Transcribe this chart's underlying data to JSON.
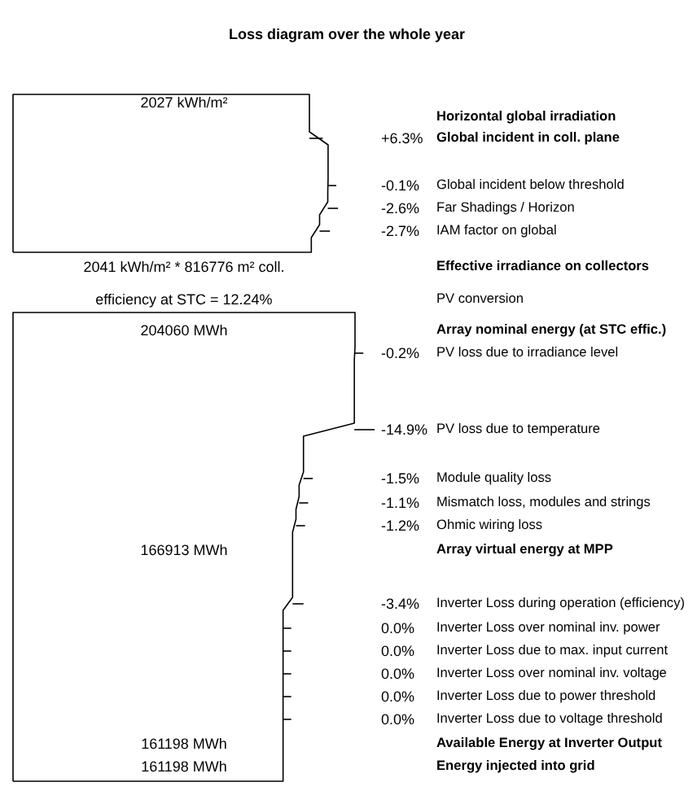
{
  "chart_data": {
    "type": "other",
    "title": "Loss diagram over the whole year",
    "categories": [
      "Horizontal global irradiation",
      "Global incident in coll. plane",
      "Global incident below threshold",
      "Far Shadings / Horizon",
      "IAM factor on global",
      "Effective irradiance on collectors",
      "PV conversion",
      "Array nominal energy (at STC effic.)",
      "PV loss due to irradiance level",
      "PV loss due to temperature",
      "Module quality loss",
      "Mismatch loss, modules and strings",
      "Ohmic wiring loss",
      "Array virtual energy at MPP",
      "Inverter Loss during operation (efficiency)",
      "Inverter Loss over nominal inv. power",
      "Inverter Loss due to max. input current",
      "Inverter Loss over nominal inv. voltage",
      "Inverter Loss due to power threshold",
      "Inverter Loss due to voltage threshold",
      "Available Energy at Inverter Output",
      "Energy injected into grid"
    ],
    "values": [
      null,
      6.3,
      -0.1,
      -2.6,
      -2.7,
      null,
      null,
      null,
      -0.2,
      -14.9,
      -1.5,
      -1.1,
      -1.2,
      null,
      -3.4,
      0.0,
      0.0,
      0.0,
      0.0,
      0.0,
      null,
      null
    ],
    "value_labels": [
      null,
      "+6.3%",
      "-0.1%",
      "-2.6%",
      "-2.7%",
      null,
      null,
      null,
      "-0.2%",
      "-14.9%",
      "-1.5%",
      "-1.1%",
      "-1.2%",
      null,
      "-3.4%",
      "0.0%",
      "0.0%",
      "0.0%",
      "0.0%",
      "0.0%",
      null,
      null
    ],
    "annotations": [
      "2027 kWh/m²",
      "2041 kWh/m² * 816776 m² coll.",
      "efficiency at STC = 12.24%",
      "204060 MWh",
      "166913 MWh",
      "161198 MWh",
      "161198 MWh"
    ]
  }
}
